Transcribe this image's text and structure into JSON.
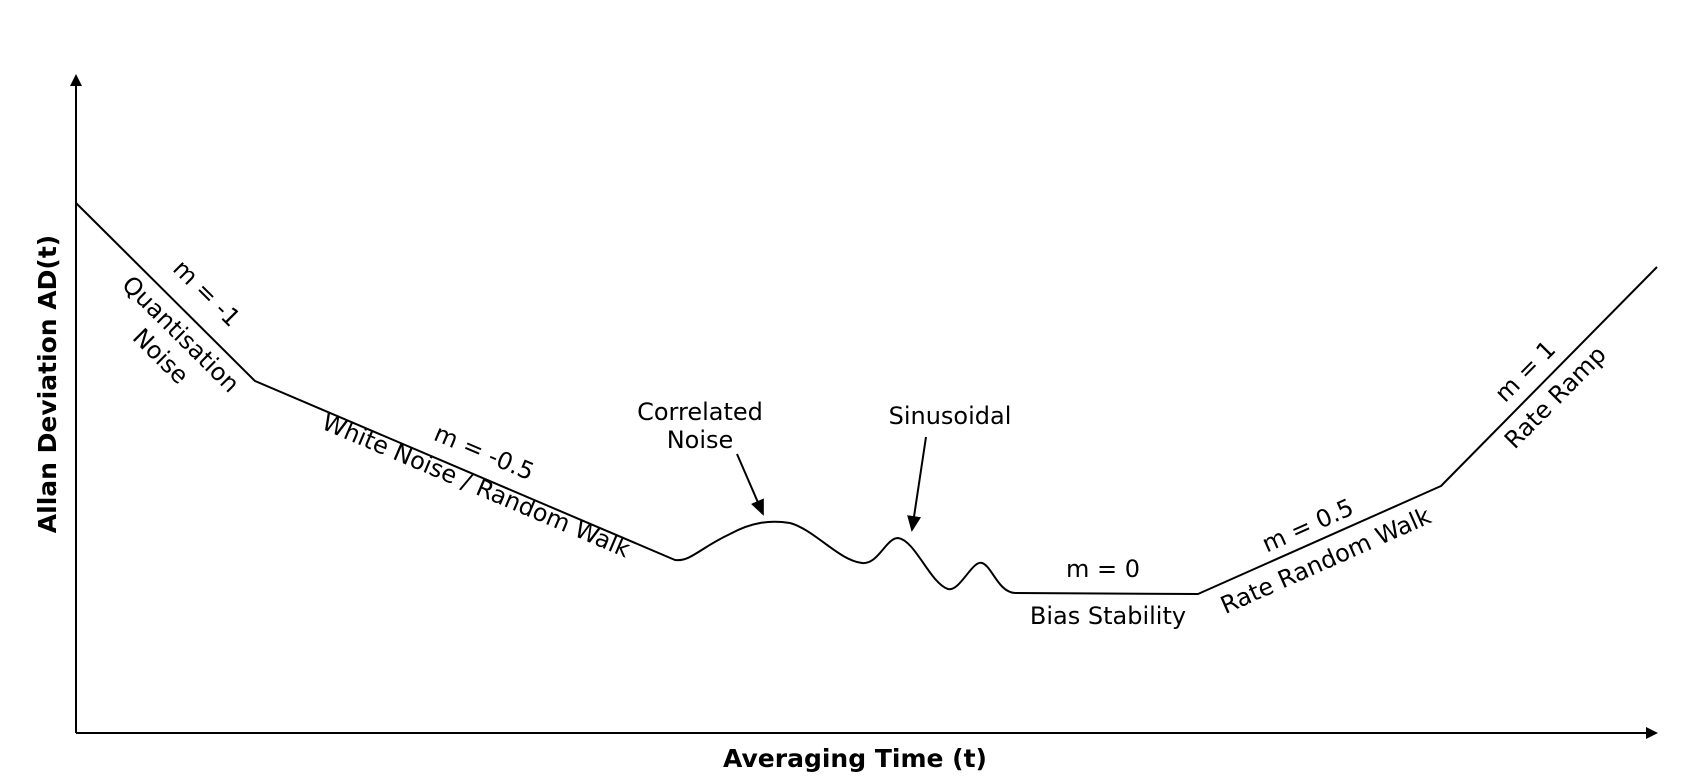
{
  "axes": {
    "x_title": "Averaging Time (t)",
    "y_title": "Allan Deviation AD(t)"
  },
  "segments": {
    "quantisation": {
      "slope": "m = -1",
      "name_line1": "Quantisation",
      "name_line2": "Noise"
    },
    "white_noise": {
      "slope": "m = -0.5",
      "name": "White Noise / Random Walk"
    },
    "correlated": {
      "name_line1": "Correlated",
      "name_line2": "Noise"
    },
    "sinusoidal": {
      "name": "Sinusoidal"
    },
    "bias": {
      "slope": "m = 0",
      "name": "Bias Stability"
    },
    "rate_random_walk": {
      "slope": "m = 0.5",
      "name": "Rate Random Walk"
    },
    "rate_ramp": {
      "slope": "m = 1",
      "name": "Rate Ramp"
    }
  },
  "colors": {
    "ink": "#000000",
    "background": "#ffffff"
  }
}
